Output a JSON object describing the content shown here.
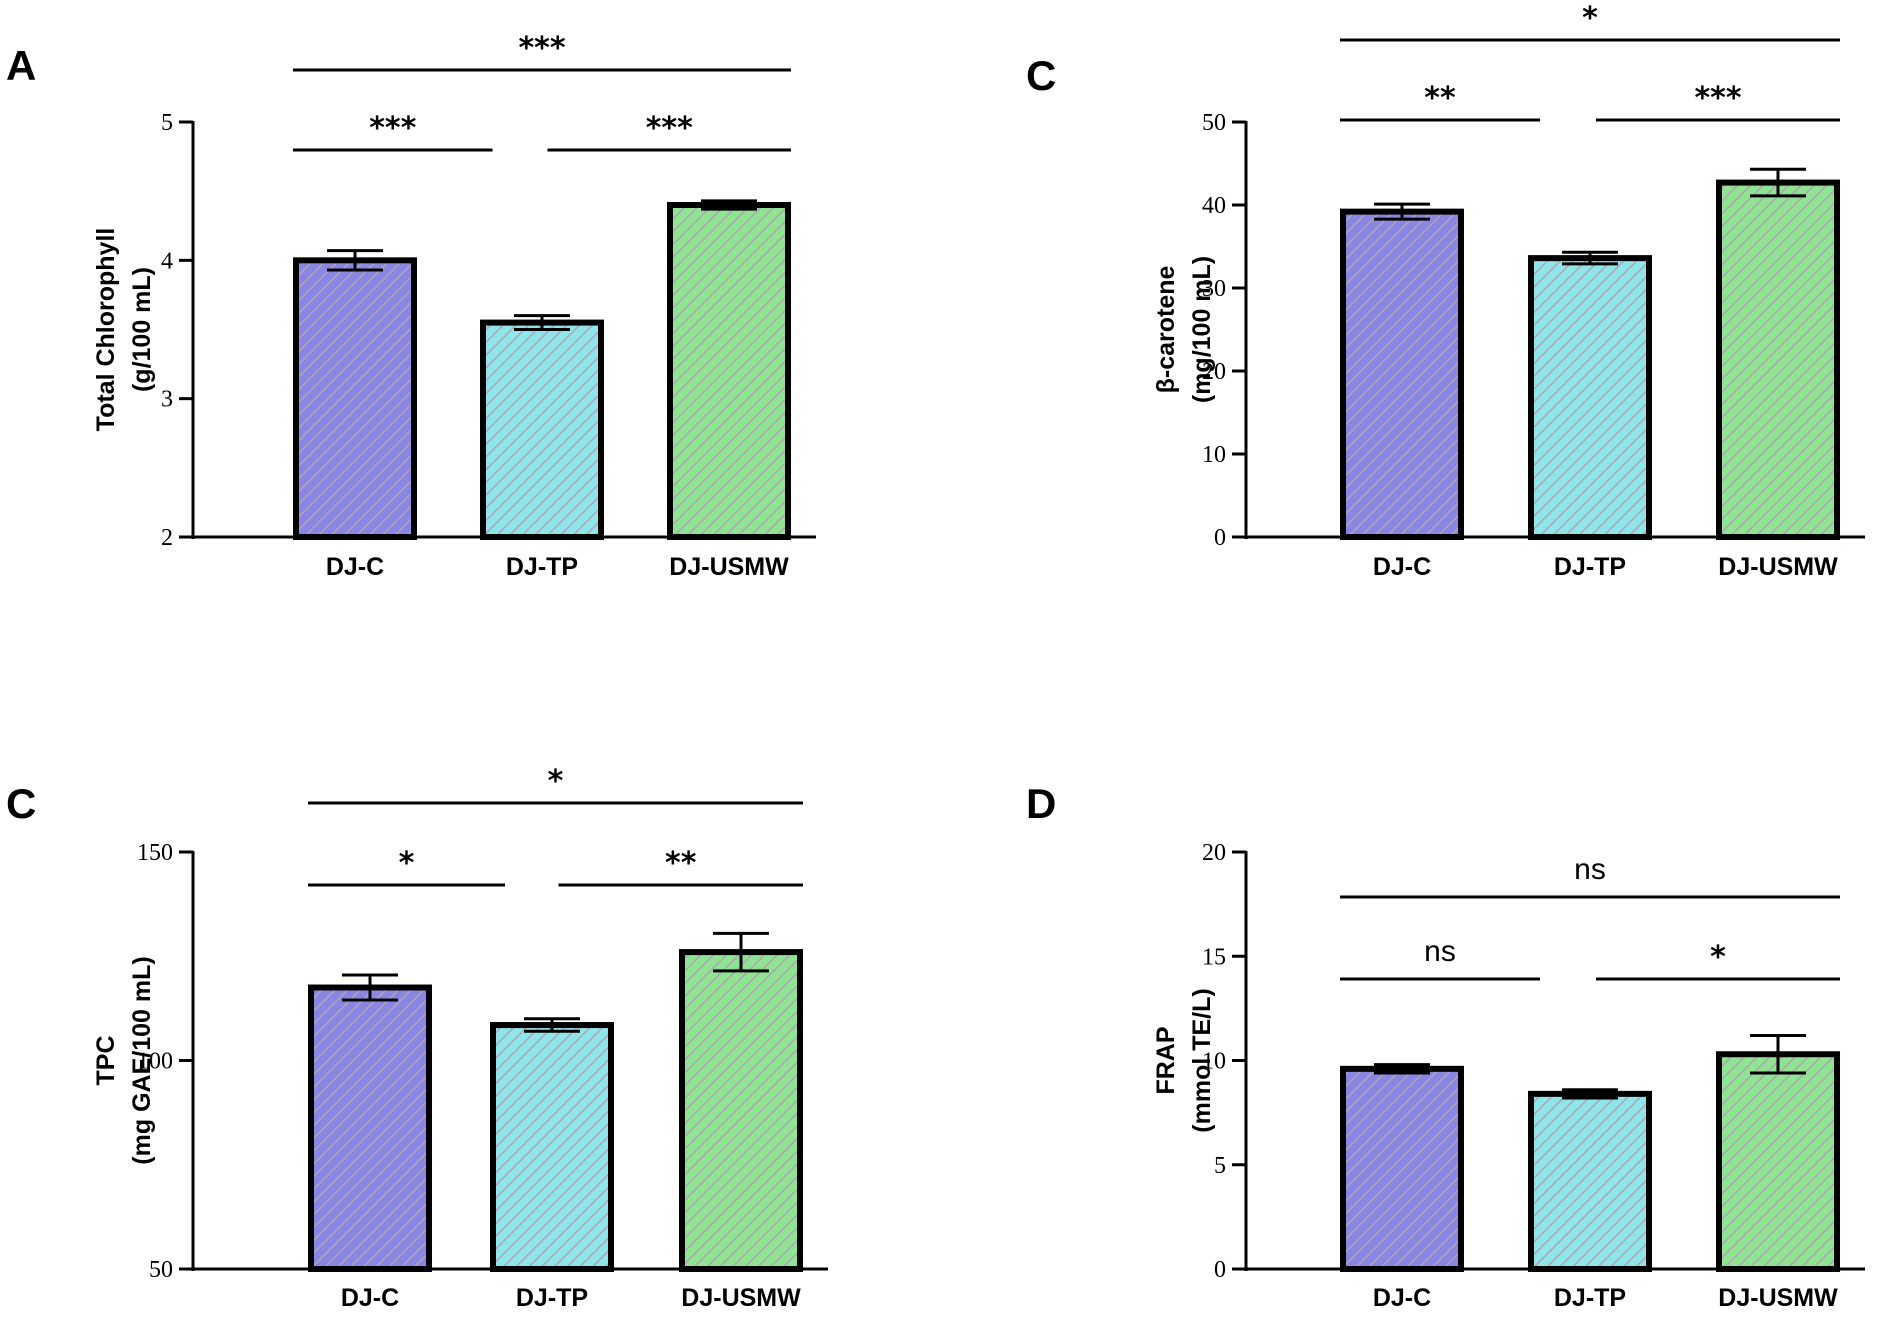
{
  "colors": {
    "DJ-C": "#8a86e4",
    "DJ-TP": "#8ee6ea",
    "DJ-USMW": "#8ee491",
    "hatch": "#b0a4b6",
    "axis": "#000000"
  },
  "panels": [
    {
      "letter": "A"
    },
    {
      "letter": "C"
    },
    {
      "letter": "C"
    },
    {
      "letter": "D"
    }
  ],
  "chart_data": [
    {
      "type": "bar",
      "panel": "A",
      "ylabel_line1": "Total Chlorophyll",
      "ylabel_line2": "(g/100 mL)",
      "categories": [
        "DJ-C",
        "DJ-TP",
        "DJ-USMW"
      ],
      "values": [
        4.0,
        3.55,
        4.4
      ],
      "errors": [
        0.07,
        0.05,
        0.03
      ],
      "ylim": [
        2,
        5
      ],
      "yticks": [
        2,
        3,
        4,
        5
      ],
      "ytick_labels": [
        "2",
        "3",
        "4",
        "5"
      ],
      "significance": [
        {
          "from": 0,
          "to": 2,
          "label": "***"
        },
        {
          "from": 0,
          "to": 1,
          "label": "***"
        },
        {
          "from": 1,
          "to": 2,
          "label": "***"
        }
      ]
    },
    {
      "type": "bar",
      "panel": "C",
      "ylabel_line1": "β-carotene",
      "ylabel_line2": "(mg/100 mL)",
      "categories": [
        "DJ-C",
        "DJ-TP",
        "DJ-USMW"
      ],
      "values": [
        39.2,
        33.6,
        42.7
      ],
      "errors": [
        0.9,
        0.7,
        1.6
      ],
      "ylim": [
        0,
        50
      ],
      "yticks": [
        0,
        10,
        20,
        30,
        40,
        50
      ],
      "ytick_labels": [
        "0",
        "10",
        "20",
        "30",
        "40",
        "50"
      ],
      "significance": [
        {
          "from": 0,
          "to": 2,
          "label": "*"
        },
        {
          "from": 0,
          "to": 1,
          "label": "**"
        },
        {
          "from": 1,
          "to": 2,
          "label": "***"
        }
      ]
    },
    {
      "type": "bar",
      "panel": "C",
      "ylabel_line1": "TPC",
      "ylabel_line2": "(mg GAE/100 mL)",
      "categories": [
        "DJ-C",
        "DJ-TP",
        "DJ-USMW"
      ],
      "values": [
        117.5,
        108.5,
        126
      ],
      "errors": [
        3,
        1.5,
        4.5
      ],
      "ylim": [
        50,
        150
      ],
      "yticks": [
        50,
        100,
        150
      ],
      "ytick_labels": [
        "50",
        "100",
        "150"
      ],
      "significance": [
        {
          "from": 0,
          "to": 2,
          "label": "*"
        },
        {
          "from": 0,
          "to": 1,
          "label": "*"
        },
        {
          "from": 1,
          "to": 2,
          "label": "**"
        }
      ]
    },
    {
      "type": "bar",
      "panel": "D",
      "ylabel_line1": "FRAP",
      "ylabel_line2": "(mmol TE/L)",
      "categories": [
        "DJ-C",
        "DJ-TP",
        "DJ-USMW"
      ],
      "values": [
        9.6,
        8.4,
        10.3
      ],
      "errors": [
        0.2,
        0.2,
        0.9
      ],
      "ylim": [
        0,
        20
      ],
      "yticks": [
        0,
        5,
        10,
        15,
        20
      ],
      "ytick_labels": [
        "0",
        "5",
        "10",
        "15",
        "20"
      ],
      "significance": [
        {
          "from": 0,
          "to": 2,
          "label": "ns"
        },
        {
          "from": 0,
          "to": 1,
          "label": "ns"
        },
        {
          "from": 1,
          "to": 2,
          "label": "*"
        }
      ]
    }
  ]
}
